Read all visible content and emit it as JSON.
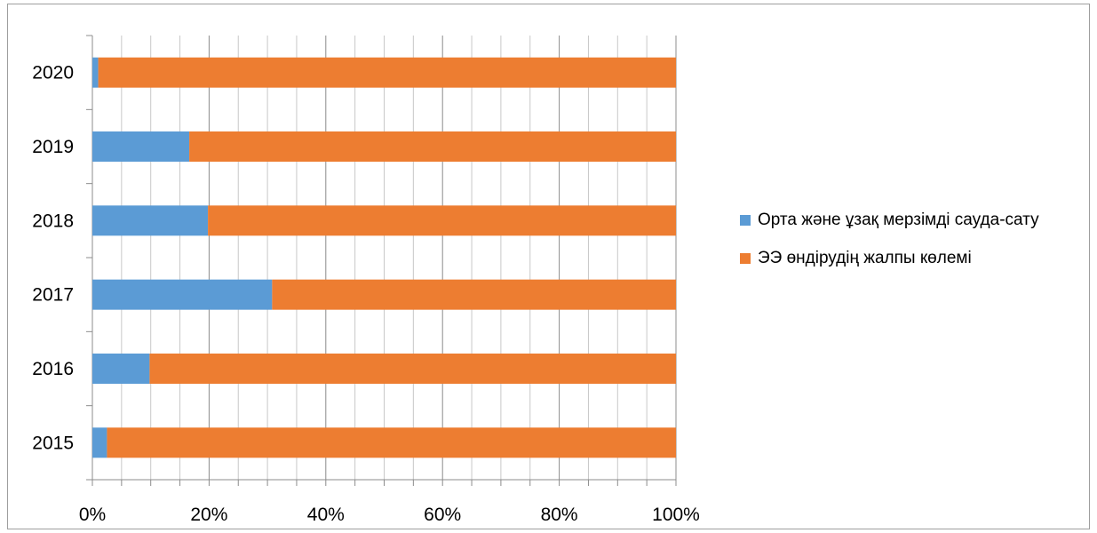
{
  "chart_data": {
    "type": "bar",
    "orientation": "horizontal",
    "stacking": "percent",
    "categories": [
      "2015",
      "2016",
      "2017",
      "2018",
      "2019",
      "2020"
    ],
    "series": [
      {
        "name": "Орта және ұзақ мерзімді сауда-сату",
        "color": "#5b9bd5",
        "values": [
          2.5,
          9.8,
          30.8,
          19.8,
          16.6,
          1.0
        ]
      },
      {
        "name": "ЭЭ өндірудің жалпы көлемі",
        "color": "#ed7d31",
        "values": [
          97.5,
          90.2,
          69.2,
          80.2,
          83.4,
          99.0
        ]
      }
    ],
    "x_ticks": [
      "0%",
      "20%",
      "40%",
      "60%",
      "80%",
      "100%"
    ],
    "xlim": [
      0,
      100
    ],
    "grid": true,
    "legend_position": "right"
  },
  "legend": {
    "items": [
      {
        "label": "Орта және ұзақ мерзімді сауда-сату",
        "color": "#5b9bd5"
      },
      {
        "label": "ЭЭ өндірудің жалпы көлемі",
        "color": "#ed7d31"
      }
    ]
  }
}
